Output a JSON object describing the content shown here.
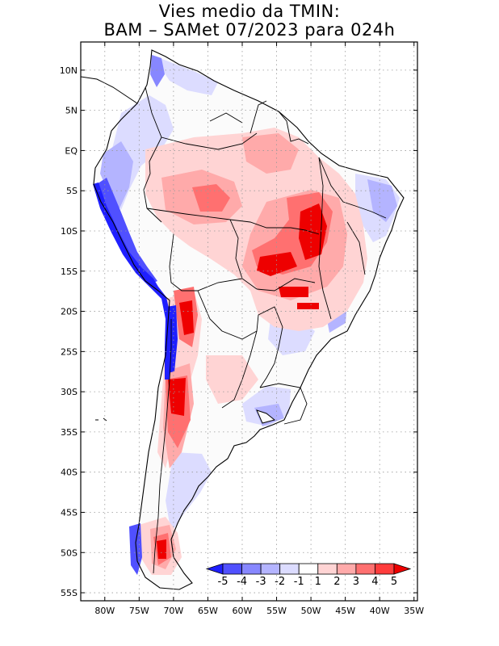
{
  "title": {
    "line1": "Vies medio da TMIN:",
    "line2": "BAM – SAMet 07/2023  para 024h"
  },
  "axes": {
    "x_ticks": [
      "80W",
      "75W",
      "70W",
      "65W",
      "60W",
      "55W",
      "50W",
      "45W",
      "40W",
      "35W"
    ],
    "x_values": [
      -80,
      -75,
      -70,
      -65,
      -60,
      -55,
      -50,
      -45,
      -40,
      -35
    ],
    "y_ticks": [
      "10N",
      "5N",
      "EQ",
      "5S",
      "10S",
      "15S",
      "20S",
      "25S",
      "30S",
      "35S",
      "40S",
      "45S",
      "50S",
      "55S"
    ],
    "y_values": [
      10,
      5,
      0,
      -5,
      -10,
      -15,
      -20,
      -25,
      -30,
      -35,
      -40,
      -45,
      -50,
      -55
    ],
    "lon_range": [
      -83.5,
      -34.5
    ],
    "lat_range": [
      -56,
      13.5
    ],
    "grid": true
  },
  "colorbar": {
    "labels": [
      "-5",
      "-4",
      "-3",
      "-2",
      "-1",
      "1",
      "2",
      "3",
      "4",
      "5"
    ],
    "colors": [
      "#1f1fff",
      "#5050ff",
      "#8787ff",
      "#b4b4ff",
      "#dcdcff",
      "#ffffff",
      "#ffd4d4",
      "#ffaaaa",
      "#ff7070",
      "#ff3c3c",
      "#ee0000"
    ]
  },
  "colors": {
    "frame": "#000000",
    "grid": "#999999",
    "coast": "#000000"
  }
}
